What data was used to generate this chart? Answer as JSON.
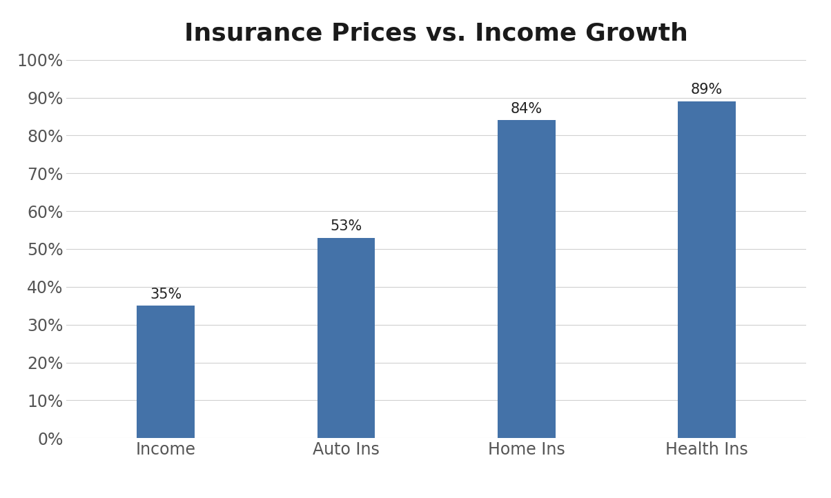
{
  "title": "Insurance Prices vs. Income Growth",
  "categories": [
    "Income",
    "Auto Ins",
    "Home Ins",
    "Health Ins"
  ],
  "values": [
    35,
    53,
    84,
    89
  ],
  "bar_color": "#4472a8",
  "background_color": "#ffffff",
  "grid_color": "#d0d0d0",
  "title_fontsize": 26,
  "tick_fontsize": 17,
  "label_fontsize": 17,
  "annotation_fontsize": 15,
  "ylim": [
    0,
    100
  ],
  "yticks": [
    0,
    10,
    20,
    30,
    40,
    50,
    60,
    70,
    80,
    90,
    100
  ],
  "bar_width": 0.32,
  "figsize": [
    12.04,
    7.22
  ],
  "dpi": 100
}
